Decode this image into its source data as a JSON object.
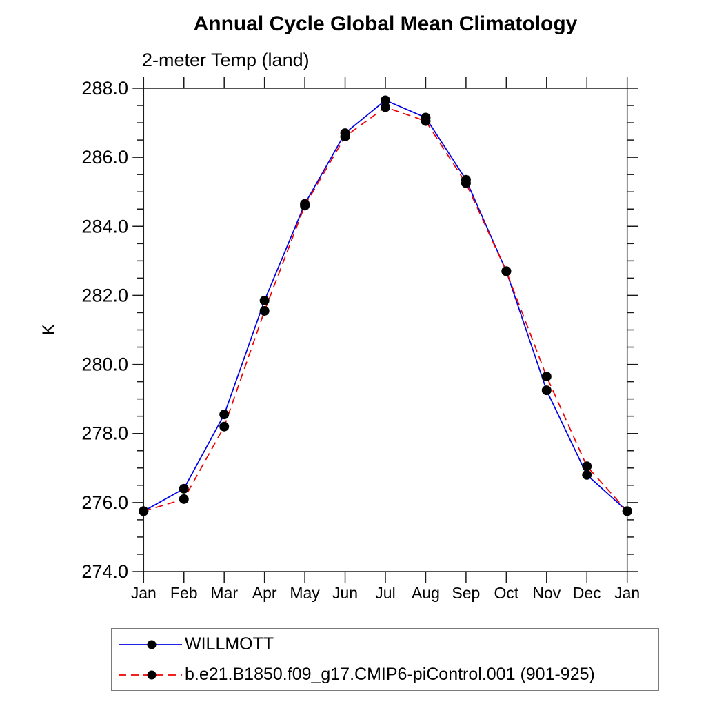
{
  "page": {
    "background": "#ffffff"
  },
  "chart_data": {
    "type": "line",
    "title": "Annual Cycle Global Mean Climatology",
    "subtitle": "2-meter Temp (land)",
    "ylabel": "K",
    "xlabel": "",
    "categories": [
      "Jan",
      "Feb",
      "Mar",
      "Apr",
      "May",
      "Jun",
      "Jul",
      "Aug",
      "Sep",
      "Oct",
      "Nov",
      "Dec",
      "Jan"
    ],
    "ylim": [
      274.0,
      288.0
    ],
    "yticks": {
      "values": [
        274,
        276,
        278,
        280,
        282,
        284,
        286,
        288
      ],
      "labels": [
        "274.0",
        "276.0",
        "278.0",
        "280.0",
        "282.0",
        "284.0",
        "286.0",
        "288.0"
      ],
      "minor_step": 0.5
    },
    "grid": false,
    "frame_color": "#1a1a1a",
    "marker_color": "#000000",
    "series": [
      {
        "name": "WILLMOTT",
        "color": "#0000e6",
        "style": "solid",
        "marker": "circle",
        "values": [
          275.75,
          276.4,
          278.55,
          281.85,
          284.65,
          286.7,
          287.65,
          287.15,
          285.35,
          282.7,
          279.25,
          276.8,
          275.75
        ]
      },
      {
        "name": "b.e21.B1850.f09_g17.CMIP6-piControl.001 (901-925)",
        "color": "#f00000",
        "style": "dashed",
        "marker": "circle",
        "values": [
          275.75,
          276.1,
          278.2,
          281.55,
          284.6,
          286.6,
          287.45,
          287.05,
          285.25,
          282.7,
          279.65,
          277.05,
          275.75
        ]
      }
    ],
    "legend": {
      "position": "bottom-left",
      "border_color": "#7a7a7a"
    }
  }
}
